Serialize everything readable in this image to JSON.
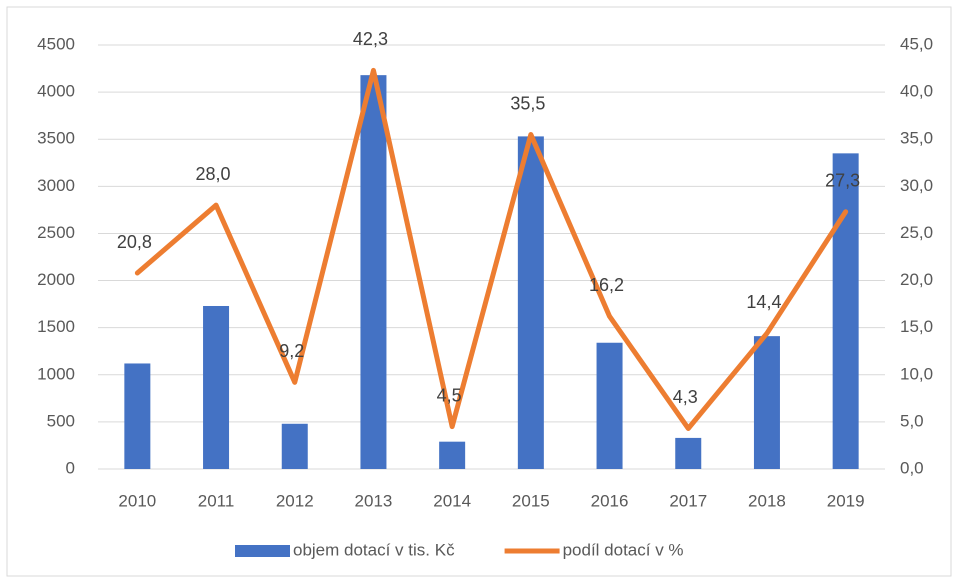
{
  "chart_data": {
    "type": "combo",
    "categories": [
      "2010",
      "2011",
      "2012",
      "2013",
      "2014",
      "2015",
      "2016",
      "2017",
      "2018",
      "2019"
    ],
    "series": [
      {
        "name": "objem dotací  v tis. Kč",
        "type": "bar",
        "color": "#4472c4",
        "values": [
          1120,
          1730,
          480,
          4180,
          290,
          3530,
          1340,
          330,
          1410,
          3350
        ]
      },
      {
        "name": "podíl dotací v %",
        "type": "line",
        "color": "#ed7d31",
        "axis": "y2",
        "values": [
          20.8,
          28.0,
          9.2,
          42.3,
          4.5,
          35.5,
          16.2,
          4.3,
          14.4,
          27.3
        ],
        "value_labels": [
          "20,8",
          "28,0",
          "9,2",
          "42,3",
          "4,5",
          "35,5",
          "16,2",
          "4,3",
          "14,4",
          "27,3"
        ]
      }
    ],
    "ylim": [
      0,
      4500
    ],
    "yticks": [
      0,
      500,
      1000,
      1500,
      2000,
      2500,
      3000,
      3500,
      4000,
      4500
    ],
    "y2lim": [
      0,
      45
    ],
    "y2ticks": [
      {
        "value": 0,
        "label": "0,0"
      },
      {
        "value": 5,
        "label": "5,0"
      },
      {
        "value": 10,
        "label": "10,0"
      },
      {
        "value": 15,
        "label": "15,0"
      },
      {
        "value": 20,
        "label": "20,0"
      },
      {
        "value": 25,
        "label": "25,0"
      },
      {
        "value": 30,
        "label": "30,0"
      },
      {
        "value": 35,
        "label": "35,0"
      },
      {
        "value": 40,
        "label": "40,0"
      },
      {
        "value": 45,
        "label": "45,0"
      }
    ],
    "grid": true,
    "legend": "bottom"
  }
}
